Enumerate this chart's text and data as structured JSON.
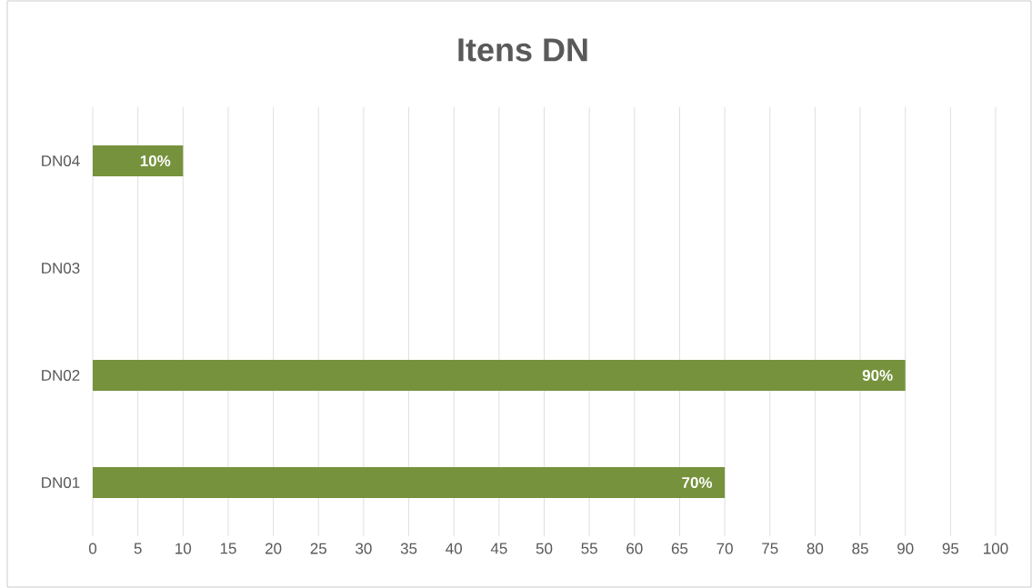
{
  "chart_data": {
    "type": "bar",
    "orientation": "horizontal",
    "title": "Itens DN",
    "categories": [
      "DN04",
      "DN03",
      "DN02",
      "DN01"
    ],
    "values": [
      10,
      0,
      90,
      70
    ],
    "value_labels": [
      "10%",
      null,
      "90%",
      "70%"
    ],
    "color": "#76923c",
    "xlim": [
      0,
      100
    ],
    "xticks": [
      0,
      5,
      10,
      15,
      20,
      25,
      30,
      35,
      40,
      45,
      50,
      55,
      60,
      65,
      70,
      75,
      80,
      85,
      90,
      95,
      100
    ],
    "grid": "x"
  }
}
